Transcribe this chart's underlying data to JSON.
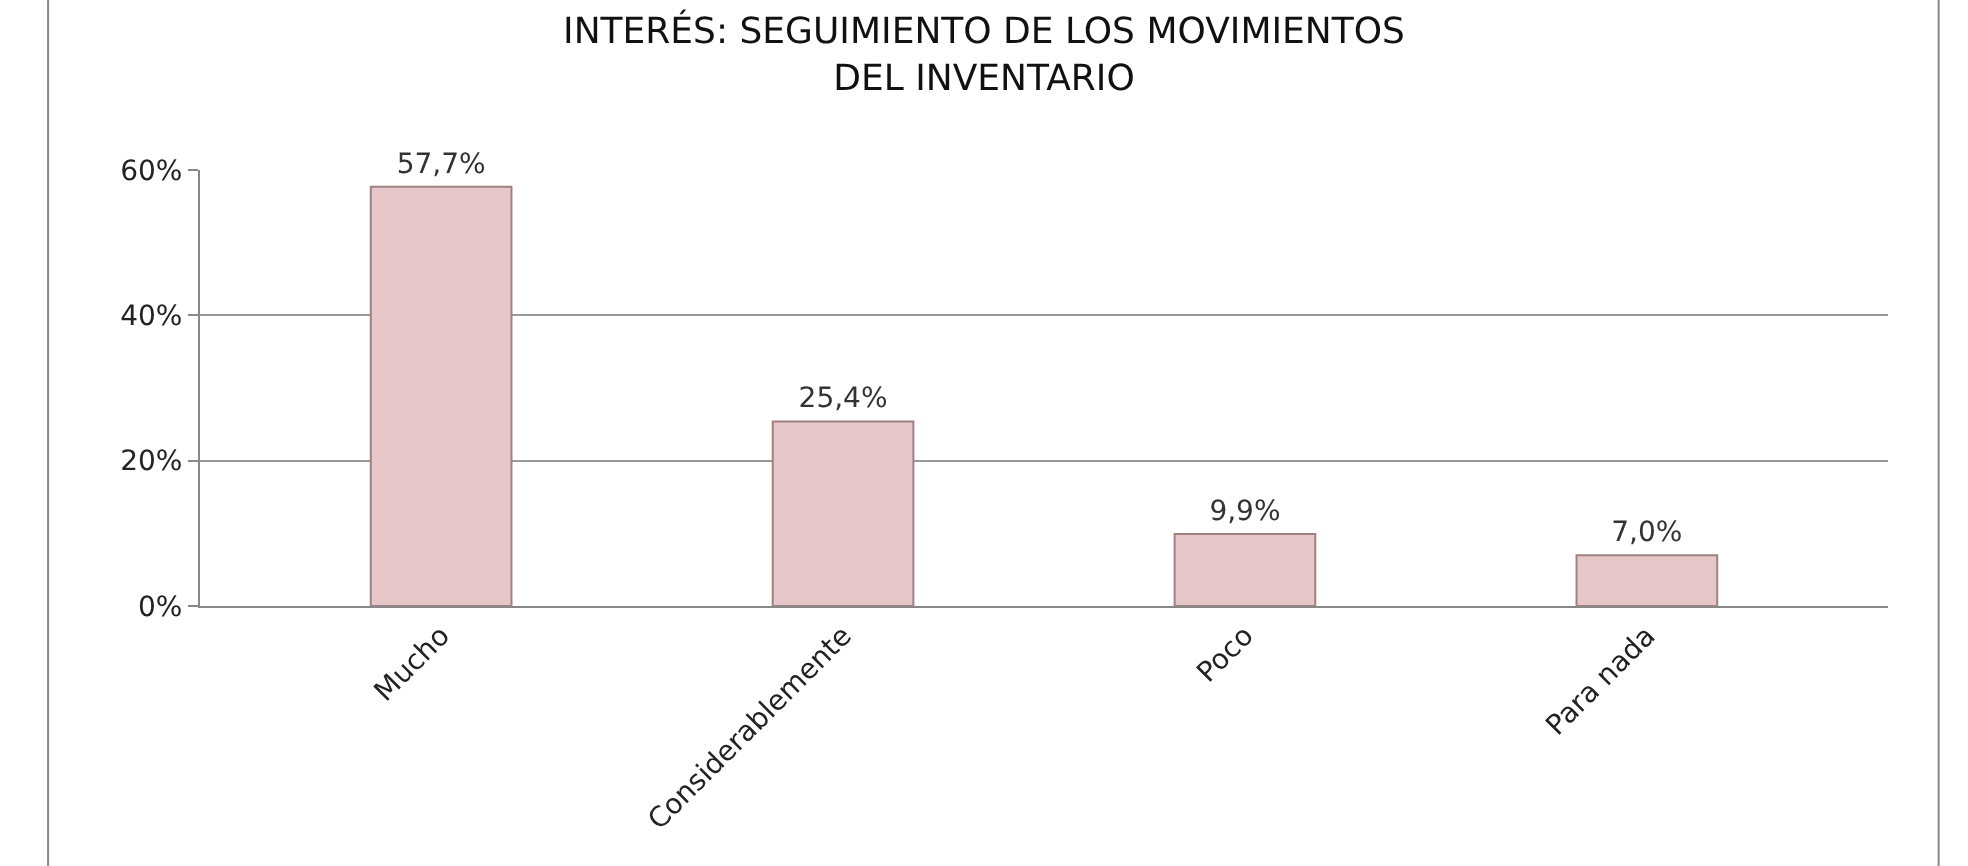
{
  "chart_data": {
    "type": "bar",
    "title": "INTERÉS: SEGUIMIENTO DE LOS MOVIMIENTOS\nDEL INVENTARIO",
    "categories": [
      "Mucho",
      "Considerablemente",
      "Poco",
      "Para nada"
    ],
    "values": [
      57.7,
      25.4,
      9.9,
      7.0
    ],
    "value_labels": [
      "57,7%",
      "25,4%",
      "9,9%",
      "7,0%"
    ],
    "color": "#e6c6c8",
    "ylim": [
      0,
      60
    ],
    "yticks": [
      {
        "value": 0,
        "label": "0%"
      },
      {
        "value": 20,
        "label": "20%"
      },
      {
        "value": 40,
        "label": "40%"
      },
      {
        "value": 60,
        "label": "60%"
      }
    ],
    "grid": "y"
  }
}
